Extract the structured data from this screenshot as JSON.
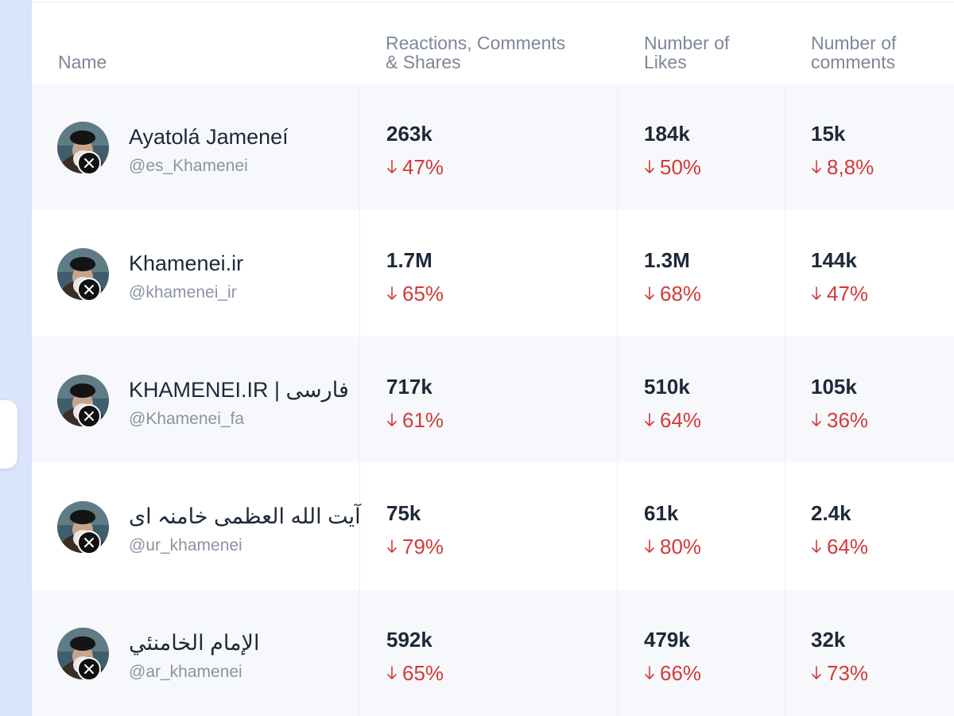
{
  "header": {
    "name": "Name",
    "reactions_line1": "Reactions, Comments",
    "reactions_line2": "& Shares",
    "likes_line1": "Number of",
    "likes_line2": "Likes",
    "comments_line1": "Number of",
    "comments_line2": "comments"
  },
  "colors": {
    "rail": "#dbe4fd",
    "decrease": "#d23a3a",
    "primary_text": "#1d2838",
    "secondary_text": "#8b93a3"
  },
  "icons": {
    "collapse": "chevron-left-icon",
    "platform": "x-logo-icon",
    "change": "arrow-down-icon"
  },
  "rows": [
    {
      "name": "Ayatolá Jameneí",
      "handle": "@es_Khamenei",
      "reactions": "263k",
      "reactions_change": "47%",
      "likes": "184k",
      "likes_change": "50%",
      "comments": "15k",
      "comments_change": "8,8%"
    },
    {
      "name": "Khamenei.ir",
      "handle": "@khamenei_ir",
      "reactions": "1.7M",
      "reactions_change": "65%",
      "likes": "1.3M",
      "likes_change": "68%",
      "comments": "144k",
      "comments_change": "47%"
    },
    {
      "name": "KHAMENEI.IR | فارسی",
      "handle": "@Khamenei_fa",
      "reactions": "717k",
      "reactions_change": "61%",
      "likes": "510k",
      "likes_change": "64%",
      "comments": "105k",
      "comments_change": "36%"
    },
    {
      "name": "آیت الله العظمی خامنہ ای",
      "handle": "@ur_khamenei",
      "reactions": "75k",
      "reactions_change": "79%",
      "likes": "61k",
      "likes_change": "80%",
      "comments": "2.4k",
      "comments_change": "64%"
    },
    {
      "name": "الإمام الخامنئي",
      "handle": "@ar_khamenei",
      "reactions": "592k",
      "reactions_change": "65%",
      "likes": "479k",
      "likes_change": "66%",
      "comments": "32k",
      "comments_change": "73%"
    }
  ]
}
